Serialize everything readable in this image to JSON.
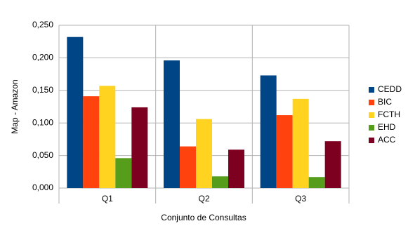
{
  "chart_data": {
    "type": "bar",
    "y_label": "Map - Amazon",
    "x_label": "Conjunto de Consultas",
    "categories": [
      "Q1",
      "Q2",
      "Q3"
    ],
    "series": [
      {
        "name": "CEDD",
        "color": "#004586",
        "values": [
          0.232,
          0.196,
          0.173
        ]
      },
      {
        "name": "BIC",
        "color": "#ff420e",
        "values": [
          0.141,
          0.064,
          0.112
        ]
      },
      {
        "name": "FCTH",
        "color": "#ffd320",
        "values": [
          0.157,
          0.106,
          0.137
        ]
      },
      {
        "name": "EHD",
        "color": "#579d1c",
        "values": [
          0.046,
          0.018,
          0.017
        ]
      },
      {
        "name": "ACC",
        "color": "#7e0021",
        "values": [
          0.124,
          0.059,
          0.072
        ]
      }
    ],
    "ylim": [
      0,
      0.25
    ],
    "yticks": [
      {
        "value": 0,
        "label": "0,000"
      },
      {
        "value": 0.05,
        "label": "0,050"
      },
      {
        "value": 0.1,
        "label": "0,100"
      },
      {
        "value": 0.15,
        "label": "0,150"
      },
      {
        "value": 0.2,
        "label": "0,200"
      },
      {
        "value": 0.25,
        "label": "0,250"
      }
    ],
    "grid": true,
    "legend": "right"
  }
}
